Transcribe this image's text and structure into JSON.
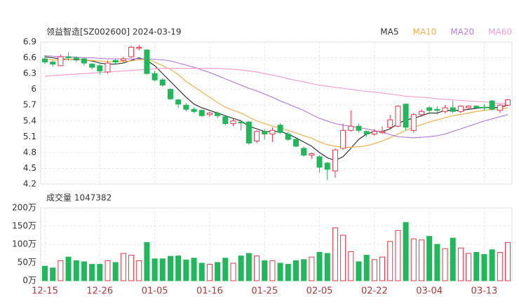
{
  "chart_data": [
    {
      "type": "candlestick",
      "title": "领益智造[SZ002600] 2024-03-19",
      "categories": [
        "12-15",
        null,
        null,
        null,
        null,
        null,
        null,
        "12-26",
        null,
        null,
        null,
        null,
        null,
        null,
        "01-05",
        null,
        null,
        null,
        null,
        null,
        null,
        "01-16",
        null,
        null,
        null,
        null,
        null,
        null,
        "01-25",
        null,
        null,
        null,
        null,
        null,
        null,
        "02-05",
        null,
        null,
        null,
        null,
        null,
        null,
        "02-22",
        null,
        null,
        null,
        null,
        null,
        null,
        "03-04",
        null,
        null,
        null,
        null,
        null,
        null,
        "03-13",
        null,
        null,
        null
      ],
      "open": [
        6.58,
        6.52,
        6.45,
        6.62,
        6.6,
        6.58,
        6.48,
        6.45,
        6.33,
        6.55,
        6.55,
        6.62,
        6.78,
        6.75,
        6.3,
        6.18,
        6.0,
        5.8,
        5.7,
        5.62,
        5.6,
        5.52,
        5.55,
        5.48,
        5.35,
        5.38,
        5.38,
        5.02,
        5.2,
        5.15,
        5.32,
        5.15,
        5.05,
        4.88,
        4.75,
        4.72,
        4.6,
        4.45,
        4.88,
        5.22,
        5.3,
        5.2,
        5.15,
        5.18,
        5.28,
        5.3,
        5.72,
        5.22,
        5.52,
        5.65,
        5.62,
        5.58,
        5.65,
        5.58,
        5.65,
        5.68,
        5.66,
        5.78,
        5.6,
        5.7
      ],
      "high": [
        6.65,
        6.55,
        6.66,
        6.7,
        6.63,
        6.6,
        6.5,
        6.48,
        6.55,
        6.58,
        6.62,
        6.83,
        6.84,
        6.76,
        6.35,
        6.22,
        6.02,
        5.82,
        5.74,
        5.66,
        5.62,
        5.58,
        5.58,
        5.5,
        5.45,
        5.42,
        5.4,
        5.22,
        5.25,
        5.28,
        5.36,
        5.2,
        5.08,
        4.92,
        4.8,
        4.75,
        4.62,
        4.88,
        5.35,
        5.6,
        5.35,
        5.22,
        5.25,
        5.3,
        5.52,
        5.7,
        5.72,
        5.55,
        5.62,
        5.68,
        5.68,
        5.7,
        5.78,
        5.7,
        5.7,
        5.7,
        5.72,
        5.8,
        5.72,
        5.82
      ],
      "low": [
        6.48,
        6.43,
        6.44,
        6.55,
        6.52,
        6.45,
        6.38,
        6.28,
        6.3,
        6.48,
        6.52,
        6.6,
        6.74,
        6.28,
        6.15,
        6.05,
        5.8,
        5.65,
        5.58,
        5.55,
        5.48,
        5.48,
        5.45,
        5.32,
        5.3,
        5.22,
        4.95,
        4.98,
        5.05,
        5.0,
        5.15,
        5.02,
        4.9,
        4.72,
        4.68,
        4.42,
        4.28,
        4.32,
        4.85,
        5.2,
        5.18,
        5.1,
        5.12,
        5.15,
        5.25,
        5.28,
        5.22,
        5.18,
        5.48,
        5.55,
        5.52,
        5.55,
        5.55,
        5.55,
        5.62,
        5.62,
        5.6,
        5.6,
        5.55,
        5.68
      ],
      "close": [
        6.52,
        6.48,
        6.62,
        6.6,
        6.57,
        6.5,
        6.42,
        6.35,
        6.5,
        6.52,
        6.58,
        6.8,
        6.8,
        6.3,
        6.18,
        6.08,
        5.82,
        5.72,
        5.62,
        5.58,
        5.5,
        5.55,
        5.5,
        5.35,
        5.4,
        5.36,
        4.98,
        5.2,
        5.15,
        5.22,
        5.18,
        5.05,
        4.92,
        4.75,
        4.78,
        4.52,
        4.48,
        4.85,
        5.22,
        5.3,
        5.22,
        5.15,
        5.2,
        5.2,
        5.42,
        5.68,
        5.28,
        5.52,
        5.58,
        5.6,
        5.6,
        5.65,
        5.58,
        5.68,
        5.68,
        5.65,
        5.65,
        5.62,
        5.7,
        5.8
      ],
      "up_color": "#e8364a",
      "down_color": "#1fb85a",
      "series": [
        {
          "name": "MA5",
          "color": "#333333",
          "values": [
            6.62,
            6.6,
            6.58,
            6.57,
            6.56,
            6.56,
            6.54,
            6.5,
            6.48,
            6.48,
            6.5,
            6.55,
            6.6,
            6.55,
            6.45,
            6.3,
            6.15,
            6.0,
            5.85,
            5.72,
            5.65,
            5.6,
            5.55,
            5.5,
            5.45,
            5.4,
            5.3,
            5.25,
            5.2,
            5.2,
            5.2,
            5.15,
            5.08,
            5.0,
            4.92,
            4.8,
            4.7,
            4.65,
            4.72,
            4.88,
            5.05,
            5.15,
            5.2,
            5.2,
            5.25,
            5.35,
            5.42,
            5.45,
            5.5,
            5.55,
            5.55,
            5.6,
            5.6,
            5.6,
            5.62,
            5.64,
            5.66,
            5.65,
            5.66,
            5.7
          ]
        },
        {
          "name": "MA10",
          "color": "#f3b24b",
          "values": [
            6.56,
            6.56,
            6.56,
            6.57,
            6.57,
            6.56,
            6.55,
            6.54,
            6.53,
            6.53,
            6.53,
            6.54,
            6.56,
            6.57,
            6.52,
            6.45,
            6.38,
            6.28,
            6.15,
            6.05,
            5.95,
            5.85,
            5.75,
            5.66,
            5.6,
            5.55,
            5.47,
            5.4,
            5.35,
            5.3,
            5.27,
            5.22,
            5.17,
            5.12,
            5.07,
            5.0,
            4.95,
            4.92,
            4.9,
            4.9,
            4.91,
            4.93,
            4.97,
            5.02,
            5.08,
            5.15,
            5.22,
            5.28,
            5.33,
            5.38,
            5.42,
            5.46,
            5.5,
            5.52,
            5.55,
            5.58,
            5.6,
            5.62,
            5.63,
            5.65
          ]
        },
        {
          "name": "MA20",
          "color": "#b77fdc",
          "values": [
            6.64,
            6.63,
            6.62,
            6.62,
            6.61,
            6.6,
            6.6,
            6.59,
            6.58,
            6.58,
            6.58,
            6.58,
            6.58,
            6.58,
            6.57,
            6.56,
            6.54,
            6.5,
            6.46,
            6.42,
            6.37,
            6.32,
            6.26,
            6.2,
            6.14,
            6.08,
            6.02,
            5.97,
            5.91,
            5.85,
            5.78,
            5.72,
            5.66,
            5.6,
            5.52,
            5.45,
            5.4,
            5.35,
            5.32,
            5.3,
            5.27,
            5.25,
            5.22,
            5.18,
            5.14,
            5.1,
            5.09,
            5.08,
            5.09,
            5.1,
            5.12,
            5.15,
            5.2,
            5.25,
            5.3,
            5.35,
            5.4,
            5.44,
            5.48,
            5.52
          ]
        },
        {
          "name": "MA60",
          "color": "#f2a2d2",
          "values": [
            6.25,
            6.26,
            6.27,
            6.28,
            6.29,
            6.3,
            6.31,
            6.32,
            6.33,
            6.34,
            6.35,
            6.36,
            6.37,
            6.38,
            6.39,
            6.4,
            6.4,
            6.4,
            6.4,
            6.4,
            6.4,
            6.4,
            6.4,
            6.39,
            6.38,
            6.37,
            6.35,
            6.33,
            6.3,
            6.27,
            6.24,
            6.2,
            6.17,
            6.14,
            6.11,
            6.08,
            6.06,
            6.04,
            6.02,
            6.0,
            5.98,
            5.96,
            5.95,
            5.93,
            5.91,
            5.89,
            5.87,
            5.86,
            5.85,
            5.84,
            5.82,
            5.81,
            5.8,
            5.79,
            5.78,
            5.77,
            5.76,
            5.75,
            5.73,
            5.72
          ]
        }
      ],
      "ylim": [
        4.2,
        6.9
      ],
      "yticks": [
        6.9,
        6.6,
        6.3,
        6,
        5.7,
        5.4,
        5.1,
        4.8,
        4.5,
        4.2
      ],
      "grid": true,
      "legend": "top-right"
    },
    {
      "type": "bar",
      "title": "成交量 1047382",
      "values": [
        40,
        35,
        55,
        65,
        55,
        52,
        45,
        45,
        55,
        50,
        75,
        70,
        55,
        105,
        60,
        60,
        67,
        68,
        57,
        62,
        48,
        45,
        50,
        62,
        48,
        68,
        75,
        68,
        55,
        55,
        48,
        45,
        55,
        58,
        65,
        78,
        75,
        145,
        125,
        80,
        52,
        70,
        58,
        65,
        108,
        138,
        160,
        115,
        112,
        122,
        100,
        88,
        117,
        90,
        75,
        78,
        72,
        85,
        78,
        105
      ],
      "ylim": [
        0,
        200
      ],
      "yticks": [
        {
          "value": 200,
          "label": "200万"
        },
        {
          "value": 150,
          "label": "150万"
        },
        {
          "value": 100,
          "label": "100万"
        },
        {
          "value": 50,
          "label": "50万"
        },
        {
          "value": 0,
          "label": "0万"
        }
      ],
      "grid": true
    }
  ]
}
